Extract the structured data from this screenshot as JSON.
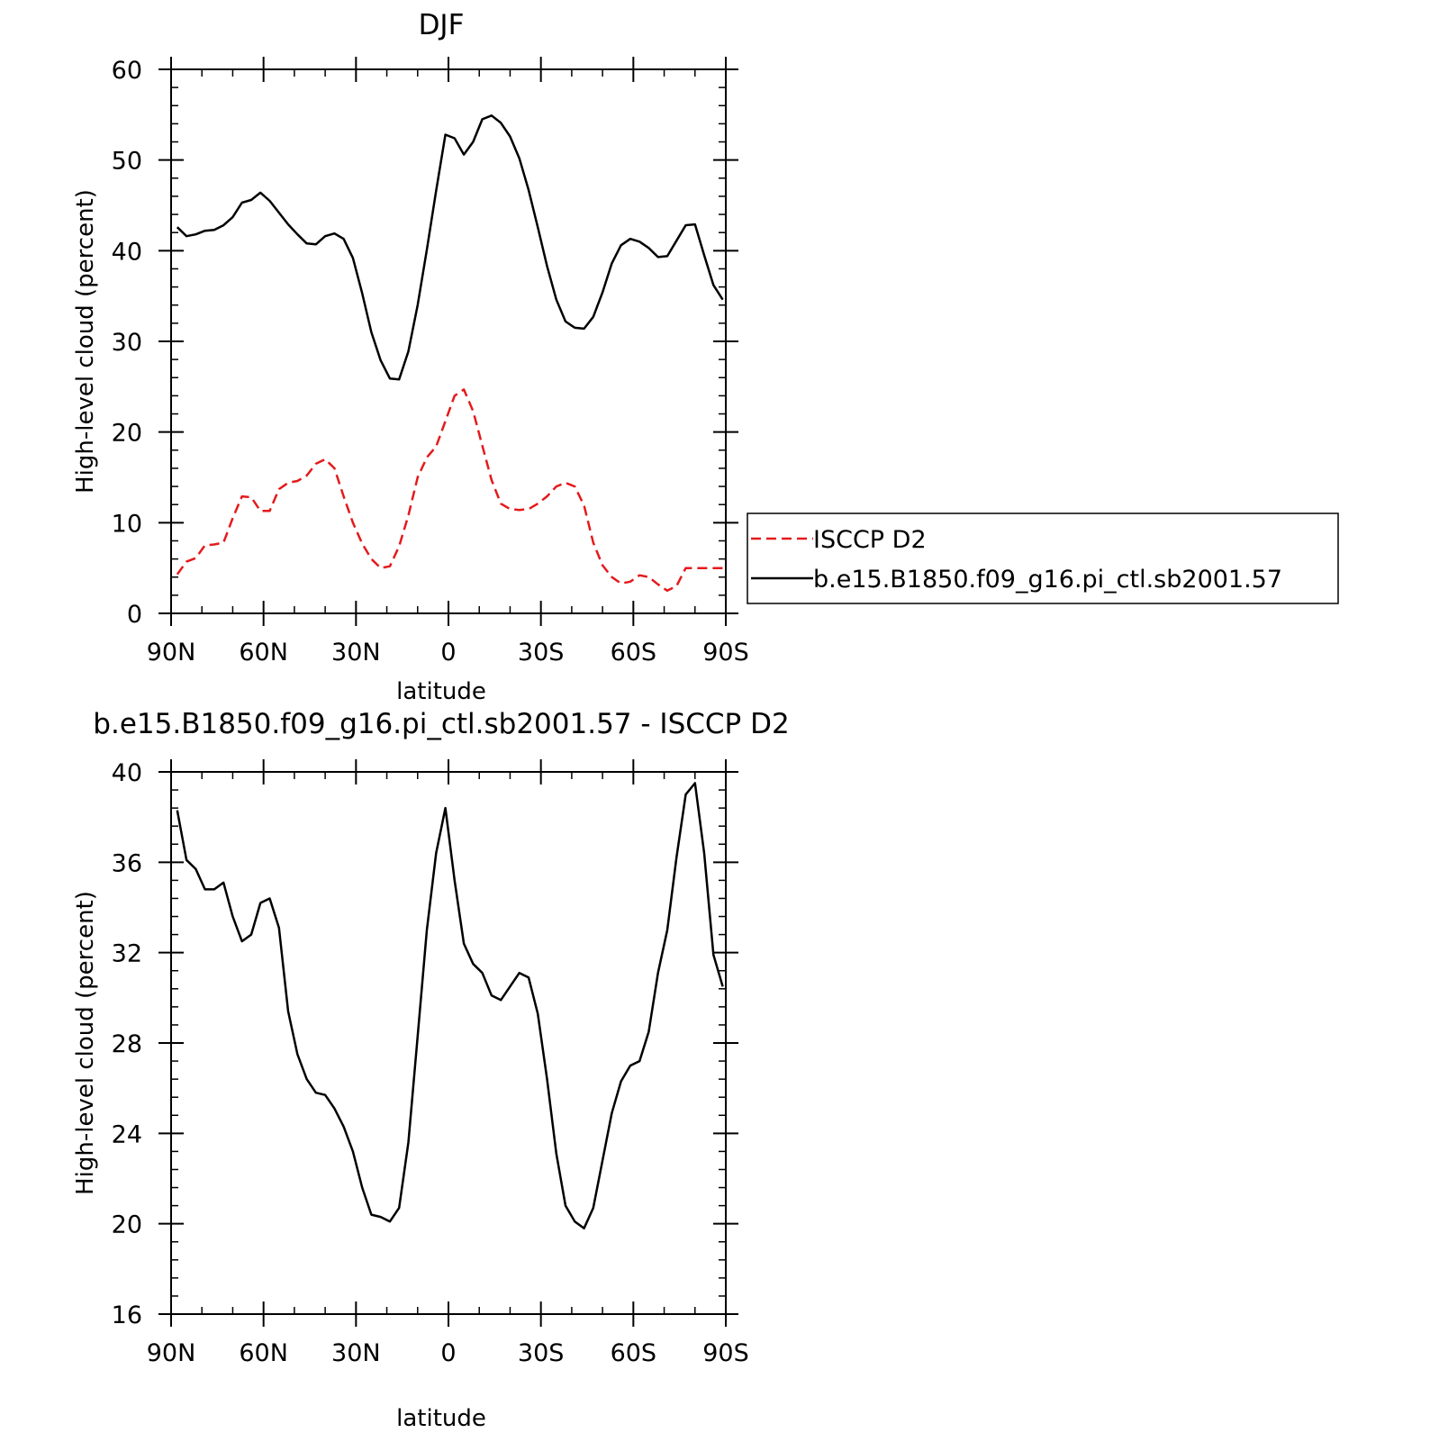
{
  "chart_data": [
    {
      "type": "line",
      "title": "DJF",
      "xlabel": "latitude",
      "ylabel": "High-level cloud (percent)",
      "xlim": [
        90,
        -90
      ],
      "ylim": [
        0,
        60
      ],
      "x_ticks": [
        90,
        60,
        30,
        0,
        -30,
        -60,
        -90
      ],
      "x_tick_labels": [
        "90N",
        "60N",
        "30N",
        "0",
        "30S",
        "60S",
        "90S"
      ],
      "y_ticks": [
        0,
        10,
        20,
        30,
        40,
        50,
        60
      ],
      "y_tick_labels": [
        "0",
        "10",
        "20",
        "30",
        "40",
        "50",
        "60"
      ],
      "legend_position": "right",
      "grid": false,
      "x": [
        88,
        85,
        82,
        79,
        76,
        73,
        70,
        67,
        64,
        61,
        58,
        55,
        52,
        49,
        46,
        43,
        40,
        37,
        34,
        31,
        28,
        25,
        22,
        19,
        16,
        13,
        10,
        7,
        4,
        1,
        -2,
        -5,
        -8,
        -11,
        -14,
        -17,
        -20,
        -23,
        -26,
        -29,
        -32,
        -35,
        -38,
        -41,
        -44,
        -47,
        -50,
        -53,
        -56,
        -59,
        -62,
        -65,
        -68,
        -71,
        -74,
        -77,
        -80,
        -83,
        -86,
        -89
      ],
      "series": [
        {
          "name": "ISCCP D2",
          "color": "#e41a1c",
          "dash": "dashed",
          "values": [
            4.3,
            5.7,
            6.1,
            7.5,
            7.6,
            7.8,
            10.5,
            12.9,
            12.8,
            11.3,
            11.3,
            13.7,
            14.4,
            14.6,
            15.2,
            16.5,
            17.0,
            16.0,
            12.9,
            10.0,
            7.7,
            6.0,
            5.0,
            5.2,
            7.4,
            10.8,
            15.0,
            17.2,
            18.4,
            21.2,
            24.0,
            24.7,
            22.3,
            18.5,
            14.7,
            12.1,
            11.5,
            11.4,
            11.5,
            12.1,
            12.9,
            14.0,
            14.4,
            14.0,
            11.9,
            7.8,
            5.3,
            4.0,
            3.3,
            3.5,
            4.2,
            4.0,
            3.2,
            2.5,
            3.0,
            5.0,
            5.0,
            5.0,
            5.0,
            5.0
          ]
        },
        {
          "name": "b.e15.B1850.f09_g16.pi_ctl.sb2001.57",
          "color": "#000000",
          "dash": "solid",
          "values": [
            42.6,
            41.6,
            41.8,
            42.2,
            42.3,
            42.8,
            43.7,
            45.3,
            45.6,
            46.4,
            45.5,
            44.2,
            42.9,
            41.8,
            40.8,
            40.7,
            41.6,
            41.9,
            41.3,
            39.2,
            35.3,
            31.0,
            27.9,
            25.9,
            25.8,
            28.9,
            34.0,
            40.1,
            46.6,
            52.8,
            52.4,
            50.6,
            52.0,
            54.5,
            54.9,
            54.1,
            52.6,
            50.2,
            46.7,
            42.6,
            38.3,
            34.6,
            32.2,
            31.5,
            31.4,
            32.7,
            35.4,
            38.6,
            40.6,
            41.3,
            41.0,
            40.3,
            39.3,
            39.4,
            41.1,
            42.8,
            42.9,
            39.5,
            36.2,
            34.6
          ]
        }
      ]
    },
    {
      "type": "line",
      "title": "b.e15.B1850.f09_g16.pi_ctl.sb2001.57 - ISCCP D2",
      "xlabel": "latitude",
      "ylabel": "High-level cloud (percent)",
      "xlim": [
        90,
        -90
      ],
      "ylim": [
        16,
        40
      ],
      "x_ticks": [
        90,
        60,
        30,
        0,
        -30,
        -60,
        -90
      ],
      "x_tick_labels": [
        "90N",
        "60N",
        "30N",
        "0",
        "30S",
        "60S",
        "90S"
      ],
      "y_ticks": [
        16,
        20,
        24,
        28,
        32,
        36,
        40
      ],
      "y_tick_labels": [
        "16",
        "20",
        "24",
        "28",
        "32",
        "36",
        "40"
      ],
      "grid": false,
      "x": [
        88,
        85,
        82,
        79,
        76,
        73,
        70,
        67,
        64,
        61,
        58,
        55,
        52,
        49,
        46,
        43,
        40,
        37,
        34,
        31,
        28,
        25,
        22,
        19,
        16,
        13,
        10,
        7,
        4,
        1,
        -2,
        -5,
        -8,
        -11,
        -14,
        -17,
        -20,
        -23,
        -26,
        -29,
        -32,
        -35,
        -38,
        -41,
        -44,
        -47,
        -50,
        -53,
        -56,
        -59,
        -62,
        -65,
        -68,
        -71,
        -74,
        -77,
        -80,
        -83,
        -86,
        -89
      ],
      "series": [
        {
          "color": "#000000",
          "dash": "solid",
          "values": [
            38.3,
            36.1,
            35.7,
            34.8,
            34.8,
            35.1,
            33.6,
            32.5,
            32.8,
            34.2,
            34.4,
            33.1,
            29.4,
            27.5,
            26.4,
            25.8,
            25.7,
            25.1,
            24.3,
            23.2,
            21.6,
            20.4,
            20.3,
            20.1,
            20.7,
            23.6,
            28.3,
            33.0,
            36.4,
            38.4,
            35.2,
            32.4,
            31.5,
            31.1,
            30.1,
            29.9,
            30.5,
            31.1,
            30.9,
            29.3,
            26.4,
            23.1,
            20.8,
            20.1,
            19.8,
            20.7,
            22.8,
            24.9,
            26.3,
            27.0,
            27.2,
            28.5,
            31.1,
            33.0,
            36.2,
            39.0,
            39.5,
            36.4,
            31.9,
            30.5
          ]
        }
      ]
    }
  ]
}
